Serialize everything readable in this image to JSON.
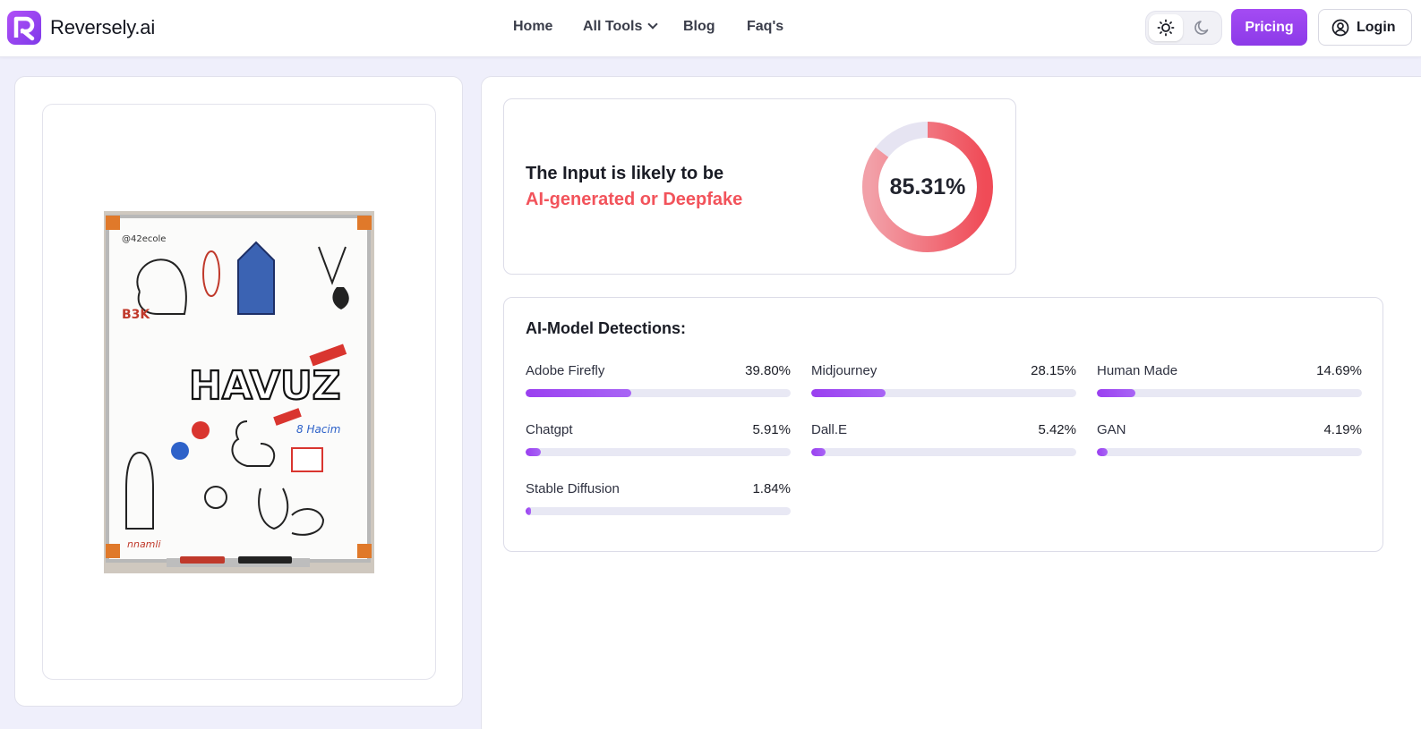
{
  "header": {
    "logo_text": "Reversely.ai",
    "nav": {
      "home": "Home",
      "all_tools": "All Tools",
      "blog": "Blog",
      "faqs": "Faq's"
    },
    "pricing_label": "Pricing",
    "login_label": "Login"
  },
  "image_panel": {
    "image_description": "whiteboard with doodles (HAVUZ)"
  },
  "result": {
    "line1": "The Input is likely to be",
    "line2": "AI-generated or Deepfake",
    "score_label": "85.31%",
    "score_fraction": 0.8531
  },
  "models": {
    "title": "AI-Model Detections:",
    "items": [
      {
        "name": "Adobe Firefly",
        "percent_label": "39.80%",
        "value": 0.398
      },
      {
        "name": "Midjourney",
        "percent_label": "28.15%",
        "value": 0.2815
      },
      {
        "name": "Human Made",
        "percent_label": "14.69%",
        "value": 0.1469
      },
      {
        "name": "Chatgpt",
        "percent_label": "5.91%",
        "value": 0.0591
      },
      {
        "name": "Dall.E",
        "percent_label": "5.42%",
        "value": 0.0542
      },
      {
        "name": "GAN",
        "percent_label": "4.19%",
        "value": 0.0419
      },
      {
        "name": "Stable Diffusion",
        "percent_label": "1.84%",
        "value": 0.0184
      }
    ]
  },
  "colors": {
    "brand_purple": "#9a3ff0",
    "alert_red": "#f2535b",
    "donut_track": "#e6e4f2"
  }
}
